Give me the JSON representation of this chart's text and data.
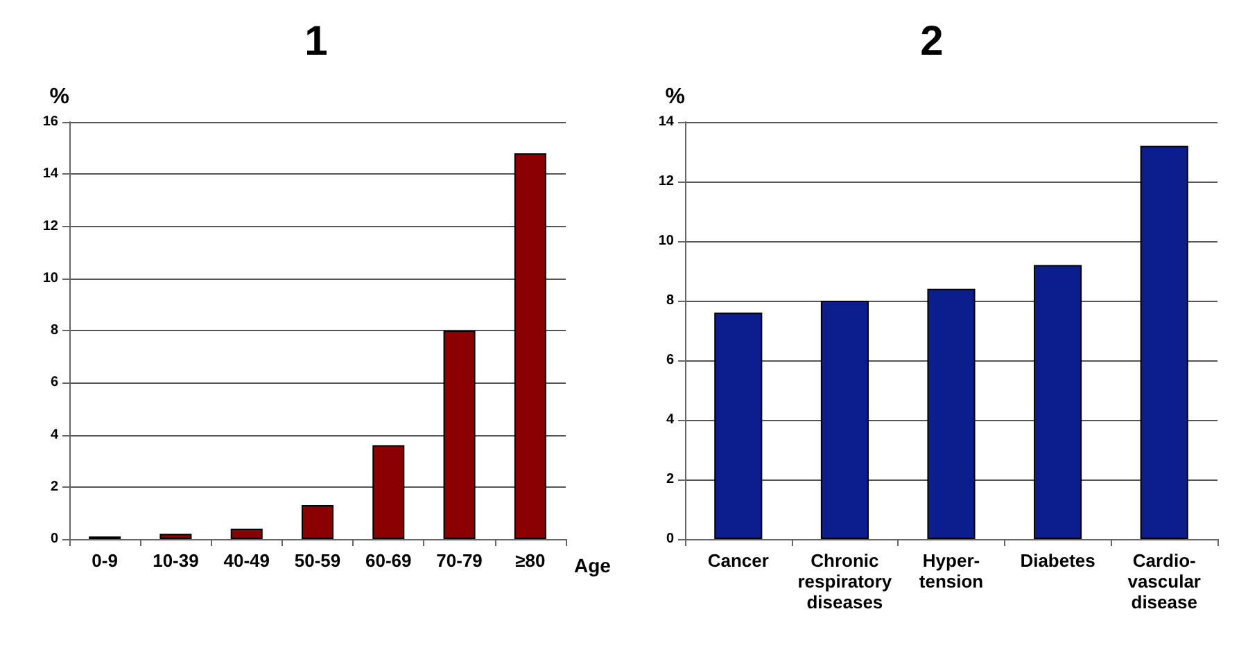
{
  "chart_data": [
    {
      "type": "bar",
      "title": "1",
      "ylabel": "%",
      "xlabel": "Age",
      "categories": [
        "0-9",
        "10-39",
        "40-49",
        "50-59",
        "60-69",
        "70-79",
        "≥80"
      ],
      "values": [
        0.1,
        0.2,
        0.4,
        1.3,
        3.6,
        8.0,
        14.8
      ],
      "color": "#8b0000",
      "ylim": [
        0,
        16
      ],
      "yticks": [
        0,
        2,
        4,
        6,
        8,
        10,
        12,
        14,
        16
      ],
      "grid": "y"
    },
    {
      "type": "bar",
      "title": "2",
      "ylabel": "%",
      "categories": [
        "Cancer",
        "Chronic\nrespiratory\ndiseases",
        "Hyper-\ntension",
        "Diabetes",
        "Cardio-\nvascular\ndisease"
      ],
      "values": [
        7.6,
        8.0,
        8.4,
        9.2,
        13.2
      ],
      "color": "#0c1e8c",
      "ylim": [
        0,
        14
      ],
      "yticks": [
        0,
        2,
        4,
        6,
        8,
        10,
        12,
        14
      ],
      "grid": "y"
    }
  ]
}
